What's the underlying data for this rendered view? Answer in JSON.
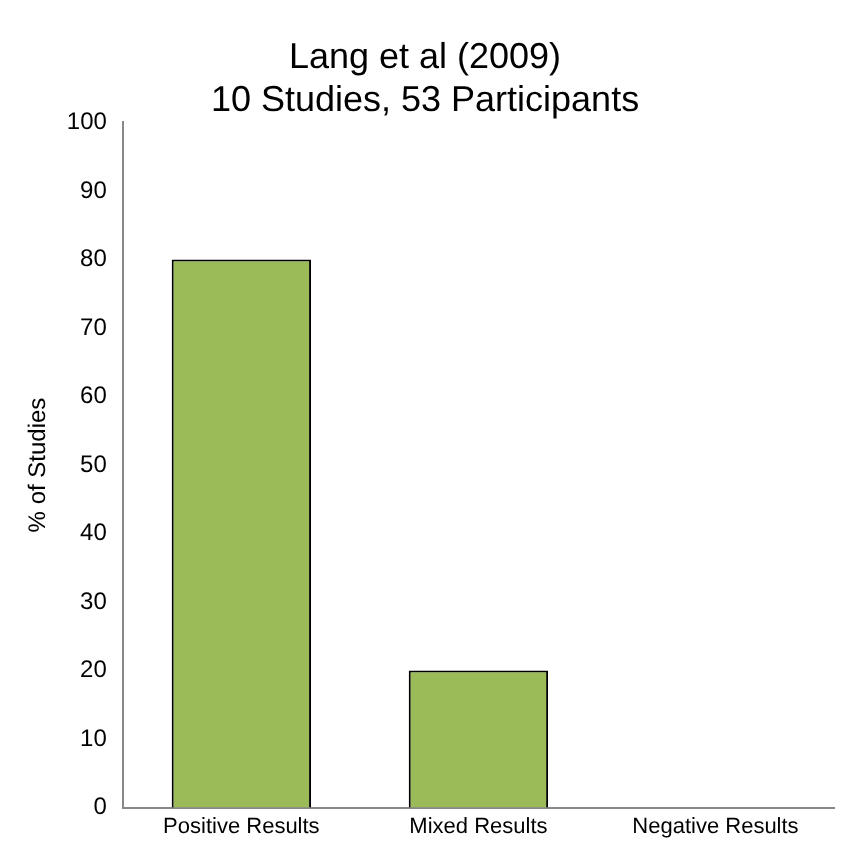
{
  "chart_data": {
    "type": "bar",
    "title": "Lang et al (2009)",
    "subtitle": "10 Studies, 53 Participants",
    "ylabel": "% of Studies",
    "categories": [
      "Positive Results",
      "Mixed Results",
      "Negative Results"
    ],
    "values": [
      80,
      20,
      0
    ],
    "color": "#9bbb59",
    "ylim": [
      0,
      100
    ],
    "yticks": [
      0,
      10,
      20,
      30,
      40,
      50,
      60,
      70,
      80,
      90,
      100
    ],
    "grid": false,
    "legend": false
  }
}
